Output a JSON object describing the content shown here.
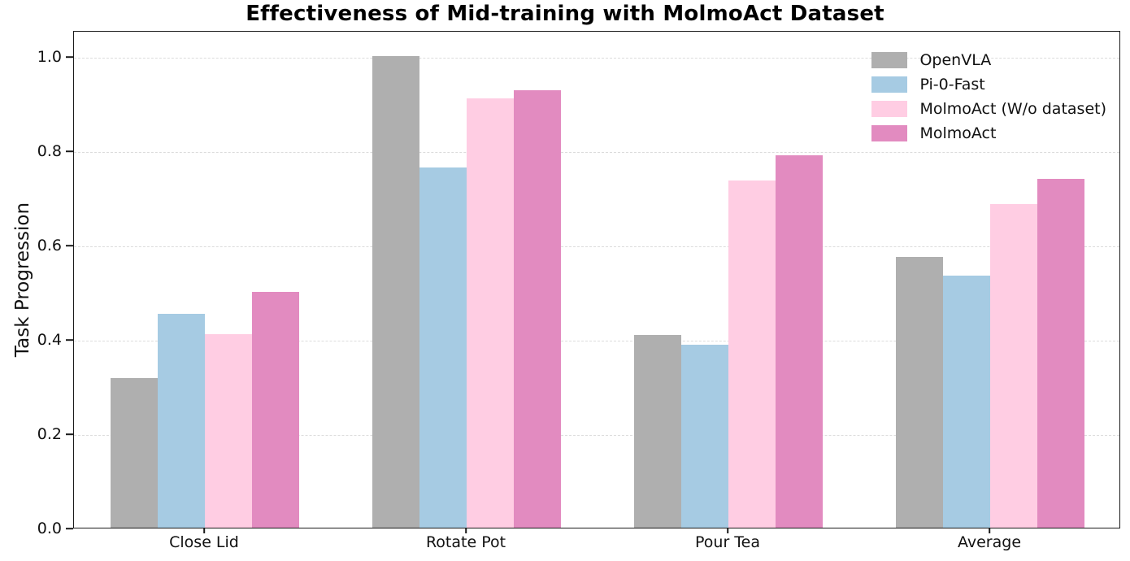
{
  "chart_data": {
    "type": "bar",
    "title": "Effectiveness of Mid-training with MolmoAct Dataset",
    "xlabel": "",
    "ylabel": "Task Progression",
    "ylim": [
      0,
      1.055
    ],
    "yticks": [
      "0.0",
      "0.2",
      "0.4",
      "0.6",
      "0.8",
      "1.0"
    ],
    "ytick_values": [
      0.0,
      0.2,
      0.4,
      0.6,
      0.8,
      1.0
    ],
    "grid": "horizontal dashed gridlines at y ticks",
    "legend_position": "upper right, no frame",
    "background_color": "#ffffff",
    "categories": [
      "Close Lid",
      "Rotate Pot",
      "Pour Tea",
      "Average"
    ],
    "series": [
      {
        "name": "OpenVLA",
        "color": "#afafaf",
        "values": [
          0.317,
          1.0,
          0.408,
          0.575
        ]
      },
      {
        "name": "Pi-0-Fast",
        "color": "#a6cbe3",
        "values": [
          0.453,
          0.763,
          0.388,
          0.535
        ]
      },
      {
        "name": "MolmoAct (W/o dataset)",
        "color": "#ffcde3",
        "values": [
          0.41,
          0.91,
          0.737,
          0.686
        ]
      },
      {
        "name": "MolmoAct",
        "color": "#e28bc0",
        "values": [
          0.5,
          0.927,
          0.79,
          0.739
        ]
      }
    ]
  }
}
